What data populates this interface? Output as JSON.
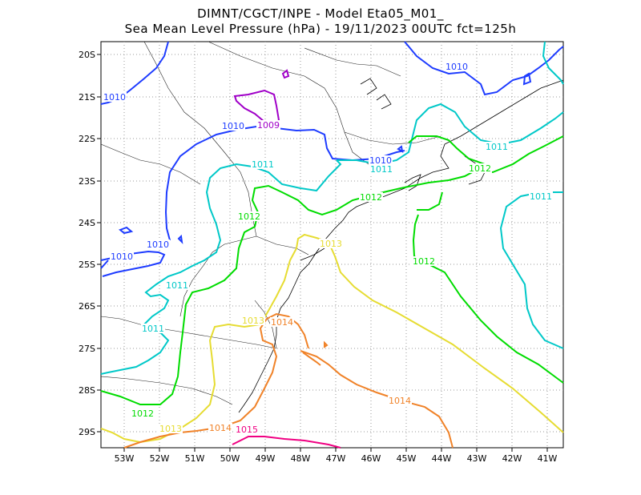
{
  "title": {
    "line1": "DIMNT/CGCT/INPE -  Model Eta05_M01_",
    "line2": "Sea Mean Level Pressure (hPa) - 19/11/2023 00UTC fct=125h"
  },
  "lat_labels": [
    "20S",
    "21S",
    "22S",
    "23S",
    "24S",
    "25S",
    "26S",
    "27S",
    "28S",
    "29S"
  ],
  "lon_labels": [
    "53W",
    "52W",
    "51W",
    "50W",
    "49W",
    "48W",
    "47W",
    "46W",
    "45W",
    "44W",
    "43W",
    "42W",
    "41W"
  ],
  "contour_colors": {
    "1009": "#a000c8",
    "1010": "#1e3cff",
    "1011": "#00c8c8",
    "1012": "#00dc00",
    "1013": "#e6dc32",
    "1014": "#f08228",
    "1015": "#f00082"
  },
  "contour_labels": [
    {
      "value": "1009",
      "color": "#a000c8"
    },
    {
      "value": "1010",
      "color": "#1e3cff"
    },
    {
      "value": "1010",
      "color": "#1e3cff"
    },
    {
      "value": "1010",
      "color": "#1e3cff"
    },
    {
      "value": "1010",
      "color": "#1e3cff"
    },
    {
      "value": "1010",
      "color": "#1e3cff"
    },
    {
      "value": "1010",
      "color": "#1e3cff"
    },
    {
      "value": "1011",
      "color": "#00c8c8"
    },
    {
      "value": "1011",
      "color": "#00c8c8"
    },
    {
      "value": "1011",
      "color": "#00c8c8"
    },
    {
      "value": "1011",
      "color": "#00c8c8"
    },
    {
      "value": "1011",
      "color": "#00c8c8"
    },
    {
      "value": "1011",
      "color": "#00c8c8"
    },
    {
      "value": "1012",
      "color": "#00dc00"
    },
    {
      "value": "1012",
      "color": "#00dc00"
    },
    {
      "value": "1012",
      "color": "#00dc00"
    },
    {
      "value": "1012",
      "color": "#00dc00"
    },
    {
      "value": "1012",
      "color": "#00dc00"
    },
    {
      "value": "1013",
      "color": "#e6dc32"
    },
    {
      "value": "1013",
      "color": "#e6dc32"
    },
    {
      "value": "1013",
      "color": "#e6dc32"
    },
    {
      "value": "1014",
      "color": "#f08228"
    },
    {
      "value": "1014",
      "color": "#f08228"
    },
    {
      "value": "1014",
      "color": "#f08228"
    },
    {
      "value": "1015",
      "color": "#f00082"
    }
  ]
}
